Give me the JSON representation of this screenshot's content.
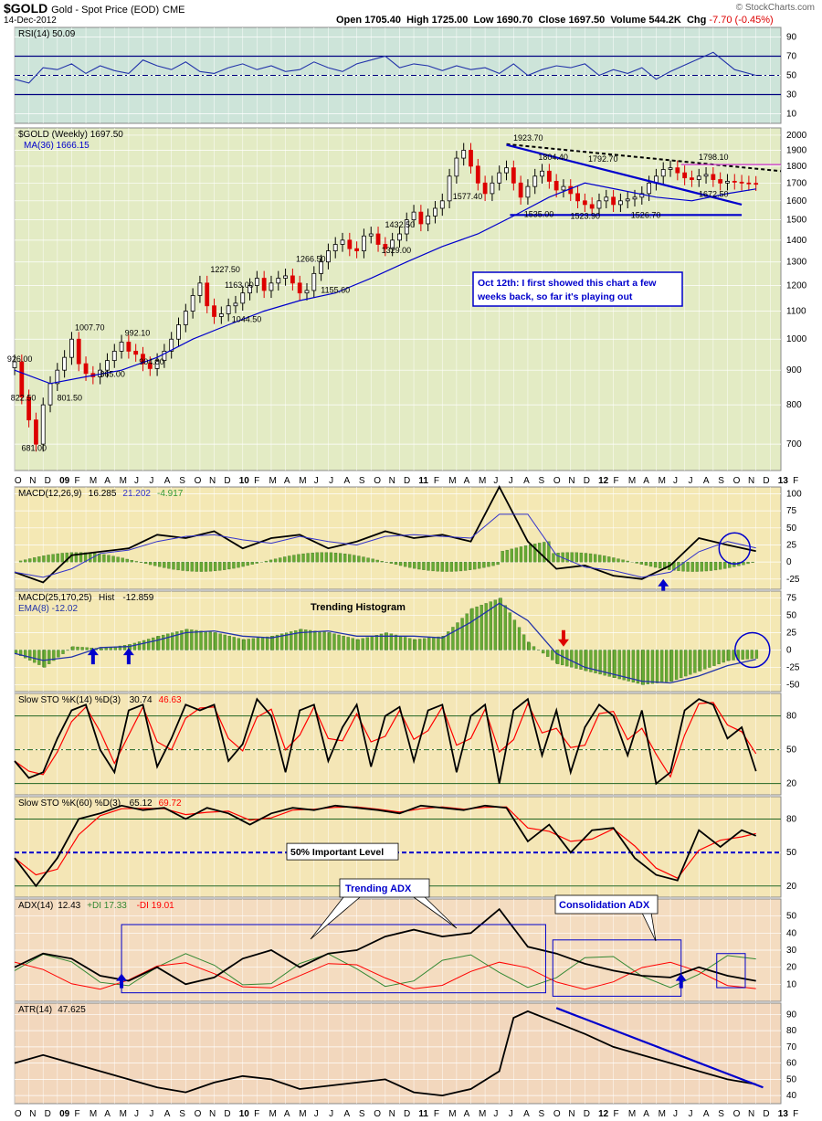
{
  "header": {
    "symbol": "$GOLD",
    "name": "Gold - Spot Price (EOD)",
    "exchange": "CME",
    "date": "14-Dec-2012",
    "open_label": "Open",
    "open": "1705.40",
    "high_label": "High",
    "high": "1725.00",
    "low_label": "Low",
    "low": "1690.70",
    "close_label": "Close",
    "close": "1697.50",
    "volume_label": "Volume",
    "volume": "544.2K",
    "chg_label": "Chg",
    "chg": "-7.70 (-0.45%)",
    "brand": "© StockCharts.com"
  },
  "x_axis": {
    "labels": [
      "O",
      "N",
      "D",
      "09",
      "F",
      "M",
      "A",
      "M",
      "J",
      "J",
      "A",
      "S",
      "O",
      "N",
      "D",
      "10",
      "F",
      "M",
      "A",
      "M",
      "J",
      "J",
      "A",
      "S",
      "O",
      "N",
      "D",
      "11",
      "F",
      "M",
      "A",
      "M",
      "J",
      "J",
      "A",
      "S",
      "O",
      "N",
      "D",
      "12",
      "F",
      "M",
      "A",
      "M",
      "J",
      "J",
      "A",
      "S",
      "O",
      "N",
      "D",
      "13",
      "F"
    ]
  },
  "colors": {
    "price_bg": "#e3ebc4",
    "rsi_bg": "#cde4d9",
    "macd_bg": "#f4e8b4",
    "sto_bg": "#f4e6b6",
    "adx_bg": "#f4dcc0",
    "atr_bg": "#f2d7bd",
    "up": "#000000",
    "down": "#dd0000",
    "ma": "#0000cc",
    "annot": "#0000cc",
    "hist": "#66aa33",
    "signal_red": "#ff0000",
    "di_plus": "#338833",
    "di_minus": "#ff0000"
  },
  "annotations": {
    "note": "Oct 12th: I first showed this chart a few weeks back, so far it's playing out",
    "trending_histogram": "Trending Histogram",
    "important_level": "50% Important Level",
    "trending_adx": "Trending ADX",
    "consolidation_adx": "Consolidation ADX"
  },
  "chart_data": [
    {
      "type": "line",
      "panel": "rsi",
      "legend": "RSI(14) 50.09",
      "y_ticks": [
        90,
        70,
        50,
        30,
        10
      ],
      "ylim": [
        0,
        100
      ],
      "x": [
        0,
        4,
        8,
        12,
        16,
        20,
        24,
        28,
        32,
        36,
        40,
        44,
        48,
        52,
        56,
        60,
        64,
        68,
        72,
        76,
        80,
        84,
        88,
        92,
        96,
        100,
        104,
        108,
        112,
        116,
        120,
        124,
        128,
        132,
        136,
        140,
        144,
        148,
        152,
        156,
        160,
        164,
        168,
        172,
        176,
        180,
        184,
        190,
        196,
        202,
        208
      ],
      "values": [
        46,
        42,
        58,
        56,
        62,
        52,
        60,
        55,
        52,
        66,
        60,
        56,
        64,
        54,
        52,
        58,
        62,
        56,
        60,
        54,
        56,
        64,
        58,
        54,
        62,
        66,
        70,
        58,
        62,
        60,
        55,
        60,
        56,
        58,
        52,
        62,
        50,
        56,
        60,
        58,
        62,
        50,
        56,
        52,
        58,
        46,
        54,
        64,
        74,
        56,
        50
      ]
    },
    {
      "type": "candlestick",
      "panel": "price",
      "legend": "$GOLD (Weekly) 1697.50",
      "legend2": "MA(36) 1666.15",
      "y_ticks": [
        2000,
        1900,
        1800,
        1700,
        1600,
        1500,
        1400,
        1300,
        1200,
        1100,
        1000,
        900,
        800,
        700
      ],
      "x": [
        0,
        2,
        4,
        6,
        8,
        10,
        12,
        14,
        16,
        18,
        20,
        22,
        24,
        26,
        28,
        30,
        32,
        34,
        36,
        38,
        40,
        42,
        44,
        46,
        48,
        50,
        52,
        54,
        56,
        58,
        60,
        62,
        64,
        66,
        68,
        70,
        72,
        74,
        76,
        78,
        80,
        82,
        84,
        86,
        88,
        90,
        92,
        94,
        96,
        98,
        100,
        102,
        104,
        106,
        108,
        110,
        112,
        114,
        116,
        118,
        120,
        122,
        124,
        126,
        128,
        130,
        132,
        134,
        136,
        138,
        140,
        142,
        144,
        146,
        148,
        150,
        152,
        154,
        156,
        158,
        160,
        162,
        164,
        166,
        168,
        170,
        172,
        174,
        176,
        178,
        180,
        182,
        184,
        186,
        188,
        190,
        192,
        194,
        196,
        198,
        200,
        202,
        204,
        206,
        208
      ],
      "close": [
        926,
        822,
        760,
        700,
        800,
        860,
        900,
        940,
        1000,
        920,
        890,
        880,
        900,
        930,
        960,
        990,
        960,
        950,
        920,
        905,
        930,
        960,
        1000,
        1050,
        1100,
        1160,
        1210,
        1120,
        1080,
        1090,
        1120,
        1130,
        1170,
        1200,
        1230,
        1180,
        1210,
        1230,
        1240,
        1210,
        1170,
        1180,
        1250,
        1300,
        1350,
        1380,
        1400,
        1360,
        1350,
        1420,
        1430,
        1380,
        1360,
        1400,
        1430,
        1500,
        1540,
        1480,
        1520,
        1560,
        1600,
        1740,
        1850,
        1900,
        1800,
        1700,
        1640,
        1700,
        1760,
        1790,
        1700,
        1620,
        1680,
        1740,
        1770,
        1710,
        1660,
        1680,
        1640,
        1600,
        1580,
        1560,
        1600,
        1620,
        1580,
        1600,
        1610,
        1620,
        1640,
        1700,
        1740,
        1780,
        1790,
        1760,
        1730,
        1720,
        1740,
        1750,
        1720,
        1700,
        1710,
        1705,
        1700,
        1698,
        1697
      ]
    },
    {
      "type": "line",
      "panel": "price-ma",
      "legend": "MA(36) 1666.15",
      "x": [
        0,
        10,
        20,
        30,
        40,
        50,
        60,
        70,
        80,
        90,
        100,
        110,
        120,
        130,
        140,
        150,
        160,
        170,
        180,
        190,
        200,
        208
      ],
      "values": [
        900,
        860,
        880,
        900,
        940,
        1000,
        1050,
        1100,
        1140,
        1170,
        1230,
        1300,
        1370,
        1430,
        1520,
        1620,
        1700,
        1660,
        1620,
        1600,
        1640,
        1666
      ]
    },
    {
      "type": "bar",
      "panel": "macd",
      "legend_label": "MACD(12,26,9)",
      "macd": "16.285",
      "signal": "21.202",
      "hist": "-4.917",
      "y_ticks": [
        100,
        75,
        50,
        25,
        0,
        -25
      ],
      "ylim": [
        -40,
        110
      ],
      "x": [
        0,
        8,
        16,
        24,
        32,
        40,
        48,
        56,
        64,
        72,
        80,
        88,
        96,
        104,
        112,
        120,
        128,
        136,
        144,
        152,
        160,
        168,
        176,
        184,
        192,
        200,
        208
      ],
      "values": [
        -15,
        -30,
        10,
        15,
        20,
        40,
        35,
        45,
        20,
        35,
        40,
        20,
        30,
        45,
        35,
        40,
        30,
        110,
        30,
        -10,
        -5,
        -20,
        -25,
        -5,
        35,
        25,
        16
      ]
    },
    {
      "type": "bar",
      "panel": "macd-trend",
      "legend_label": "MACD(25,170,25)",
      "hist_label": "Hist",
      "hist": "-12.859",
      "ema_label": "EMA(8)",
      "ema": "-12.02",
      "y_ticks": [
        75,
        50,
        25,
        0,
        -25,
        -50
      ],
      "ylim": [
        -60,
        85
      ],
      "x": [
        0,
        8,
        16,
        24,
        32,
        40,
        48,
        56,
        64,
        72,
        80,
        88,
        96,
        104,
        112,
        120,
        128,
        136,
        144,
        152,
        160,
        168,
        176,
        184,
        192,
        200,
        208
      ],
      "values": [
        -5,
        -25,
        5,
        2,
        8,
        20,
        30,
        25,
        15,
        20,
        30,
        25,
        15,
        25,
        15,
        20,
        60,
        75,
        10,
        -20,
        -30,
        -40,
        -50,
        -45,
        -30,
        -15,
        -12
      ]
    },
    {
      "type": "line",
      "panel": "sto14",
      "legend_label": "Slow STO %K(14) %D(3)",
      "k": "30.74",
      "d": "46.63",
      "y_ticks": [
        80,
        50,
        20
      ],
      "ylim": [
        10,
        100
      ],
      "x": [
        0,
        4,
        8,
        12,
        16,
        20,
        24,
        28,
        32,
        36,
        40,
        44,
        48,
        52,
        56,
        60,
        64,
        68,
        72,
        76,
        80,
        84,
        88,
        92,
        96,
        100,
        104,
        108,
        112,
        116,
        120,
        124,
        128,
        132,
        136,
        140,
        144,
        148,
        152,
        156,
        160,
        164,
        168,
        172,
        176,
        180,
        184,
        188,
        192,
        196,
        200,
        204,
        208
      ],
      "values": [
        40,
        25,
        30,
        60,
        85,
        90,
        50,
        30,
        85,
        90,
        35,
        60,
        90,
        85,
        90,
        40,
        55,
        95,
        80,
        30,
        85,
        90,
        40,
        70,
        90,
        35,
        80,
        88,
        40,
        85,
        90,
        30,
        80,
        90,
        20,
        85,
        95,
        45,
        85,
        30,
        70,
        90,
        80,
        45,
        85,
        20,
        30,
        85,
        95,
        90,
        60,
        70,
        31
      ]
    },
    {
      "type": "line",
      "panel": "sto60",
      "legend_label": "Slow STO %K(60) %D(3)",
      "k": "65.12",
      "d": "69.72",
      "y_ticks": [
        80,
        50,
        20
      ],
      "ylim": [
        10,
        100
      ],
      "x": [
        0,
        6,
        12,
        18,
        24,
        30,
        36,
        42,
        48,
        54,
        60,
        66,
        72,
        78,
        84,
        90,
        96,
        102,
        108,
        114,
        120,
        126,
        132,
        138,
        144,
        150,
        156,
        162,
        168,
        174,
        180,
        186,
        192,
        198,
        204,
        208
      ],
      "values": [
        45,
        20,
        45,
        80,
        85,
        92,
        88,
        90,
        80,
        90,
        85,
        75,
        85,
        90,
        88,
        92,
        90,
        88,
        85,
        92,
        90,
        88,
        92,
        90,
        60,
        75,
        50,
        70,
        72,
        45,
        30,
        25,
        70,
        55,
        70,
        65
      ]
    },
    {
      "type": "line",
      "panel": "adx",
      "legend_label": "ADX(14)",
      "adx": "12.43",
      "pdi_label": "+DI",
      "pdi": "17.33",
      "mdi_label": "-DI",
      "mdi": "19.01",
      "y_ticks": [
        50,
        40,
        30,
        20,
        10
      ],
      "ylim": [
        0,
        60
      ],
      "x": [
        0,
        8,
        16,
        24,
        32,
        40,
        48,
        56,
        64,
        72,
        80,
        88,
        96,
        104,
        112,
        120,
        128,
        136,
        144,
        152,
        160,
        168,
        176,
        184,
        192,
        200,
        208
      ],
      "values": [
        20,
        28,
        25,
        15,
        12,
        20,
        10,
        14,
        25,
        30,
        20,
        28,
        30,
        38,
        42,
        38,
        40,
        54,
        32,
        28,
        22,
        18,
        15,
        14,
        20,
        15,
        12
      ]
    },
    {
      "type": "line",
      "panel": "atr",
      "legend_label": "ATR(14)",
      "atr": "47.625",
      "y_ticks": [
        90,
        80,
        70,
        60,
        50,
        40
      ],
      "ylim": [
        35,
        97
      ],
      "x": [
        0,
        8,
        16,
        24,
        32,
        40,
        48,
        56,
        64,
        72,
        80,
        88,
        96,
        104,
        112,
        120,
        128,
        136,
        140,
        144,
        152,
        160,
        168,
        176,
        184,
        192,
        200,
        208
      ],
      "values": [
        60,
        65,
        60,
        55,
        50,
        45,
        42,
        48,
        52,
        50,
        44,
        46,
        48,
        50,
        42,
        40,
        44,
        55,
        88,
        92,
        85,
        78,
        70,
        65,
        60,
        55,
        50,
        47
      ]
    }
  ],
  "price_labels": [
    "926.00",
    "822.50",
    "681.00",
    "801.50",
    "1007.70",
    "865.00",
    "992.10",
    "904.80",
    "1227.50",
    "1163.00",
    "1044.50",
    "1266.50",
    "1155.60",
    "1432.50",
    "1329.00",
    "1577.40",
    "1923.70",
    "1804.40",
    "1535.00",
    "1792.70",
    "1523.90",
    "1526.70",
    "1798.10",
    "1672.50"
  ]
}
